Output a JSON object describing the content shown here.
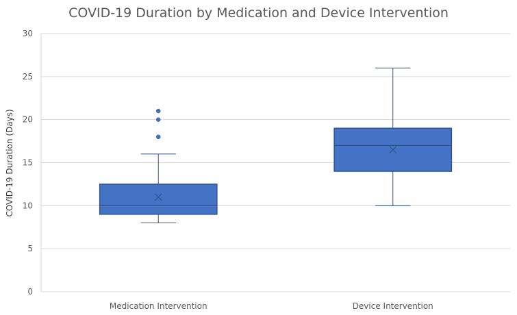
{
  "chart_data": {
    "type": "box",
    "title": "COVID-19 Duration by Medication and Device Intervention",
    "xlabel": "",
    "ylabel": "COVID-19 Duration (Days)",
    "ylim": [
      0,
      30
    ],
    "yticks": [
      0,
      5,
      10,
      15,
      20,
      25,
      30
    ],
    "categories": [
      "Medication Intervention",
      "Device Intervention"
    ],
    "boxes": [
      {
        "category": "Medication Intervention",
        "min": 8,
        "q1": 9,
        "median": 10,
        "q3": 12.5,
        "max": 16,
        "mean": 11,
        "outliers": [
          18,
          20,
          21
        ]
      },
      {
        "category": "Device Intervention",
        "min": 10,
        "q1": 14,
        "median": 17,
        "q3": 19,
        "max": 26,
        "mean": 16.5,
        "outliers": []
      }
    ],
    "grid": true,
    "colors": {
      "box_fill": "#4472C4",
      "box_stroke": "#2F5597",
      "grid": "#D9D9D9",
      "text": "#595959"
    }
  }
}
